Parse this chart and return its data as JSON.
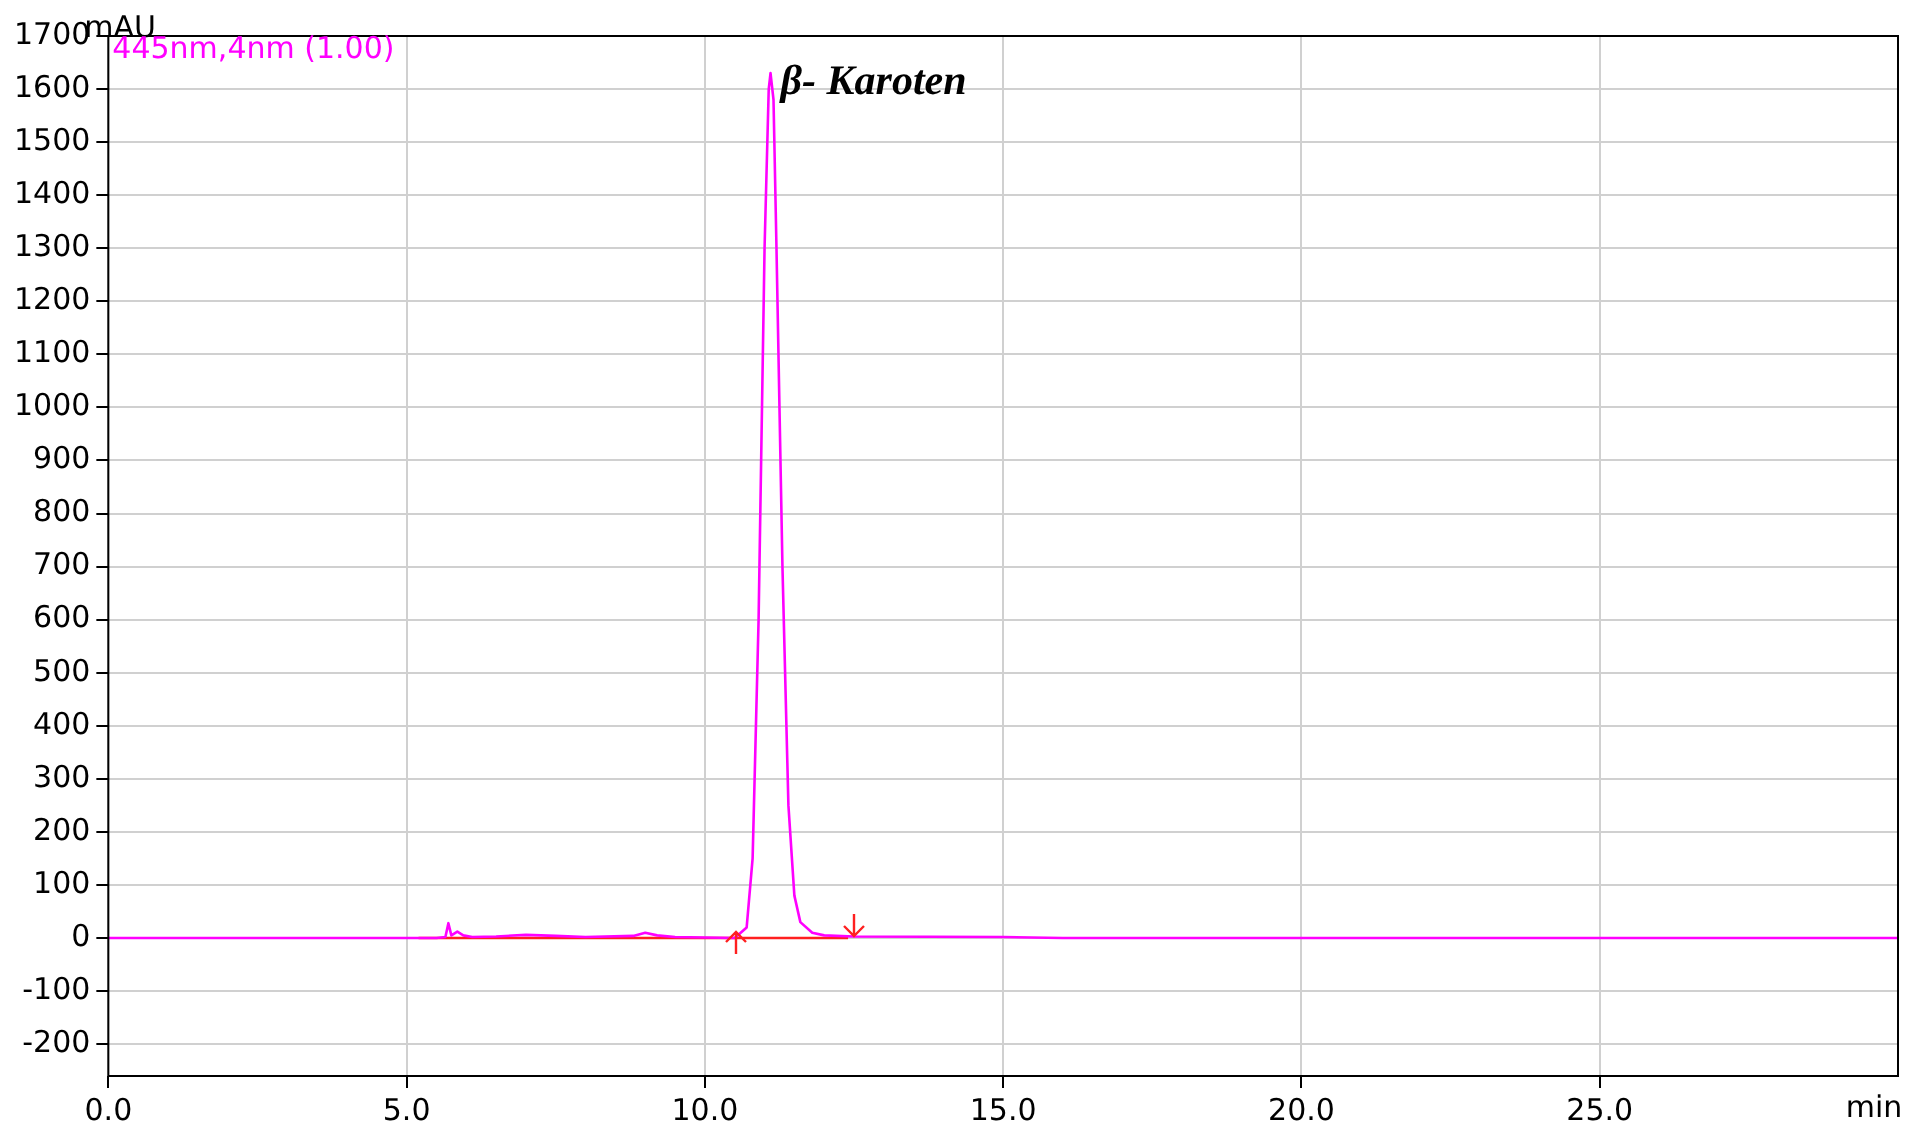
{
  "chart_data": {
    "type": "line",
    "ylabel": "mAU",
    "xlabel": "min",
    "annotations": [
      {
        "text": "β- Karoten",
        "x": 11.1,
        "y": 1630
      }
    ],
    "xlim": [
      0,
      30
    ],
    "xticks": [
      {
        "value": 0,
        "label": "0.0"
      },
      {
        "value": 5,
        "label": "5.0"
      },
      {
        "value": 10,
        "label": "10.0"
      },
      {
        "value": 15,
        "label": "15.0"
      },
      {
        "value": 20,
        "label": "20.0"
      },
      {
        "value": 25,
        "label": "25.0"
      }
    ],
    "ylim": [
      -260,
      1700
    ],
    "yticks": [
      -200,
      -100,
      0,
      100,
      200,
      300,
      400,
      500,
      600,
      700,
      800,
      900,
      1000,
      1100,
      1200,
      1300,
      1400,
      1500,
      1600,
      1700
    ],
    "grid": true,
    "marker": "none",
    "series": [
      {
        "name": "445nm,4nm (1.00)",
        "color": "#ff00ff",
        "x": [
          0,
          5.5,
          5.65,
          5.7,
          5.75,
          5.85,
          5.95,
          6.1,
          6.5,
          7.0,
          7.5,
          8.0,
          8.8,
          9.0,
          9.2,
          9.5,
          10.0,
          10.5,
          10.7,
          10.8,
          10.9,
          11.0,
          11.07,
          11.1,
          11.15,
          11.2,
          11.3,
          11.4,
          11.5,
          11.6,
          11.8,
          12.0,
          12.5,
          15.0,
          16.0,
          30
        ],
        "values": [
          0,
          0,
          2,
          28,
          5,
          12,
          5,
          2,
          3,
          6,
          4,
          2,
          4,
          10,
          5,
          2,
          1,
          0,
          20,
          150,
          600,
          1300,
          1600,
          1630,
          1580,
          1300,
          700,
          250,
          80,
          30,
          10,
          5,
          3,
          2,
          0,
          0
        ]
      },
      {
        "color": "#ff2020",
        "x": [
          5.2,
          12.4
        ],
        "values": [
          0,
          0
        ]
      }
    ]
  }
}
